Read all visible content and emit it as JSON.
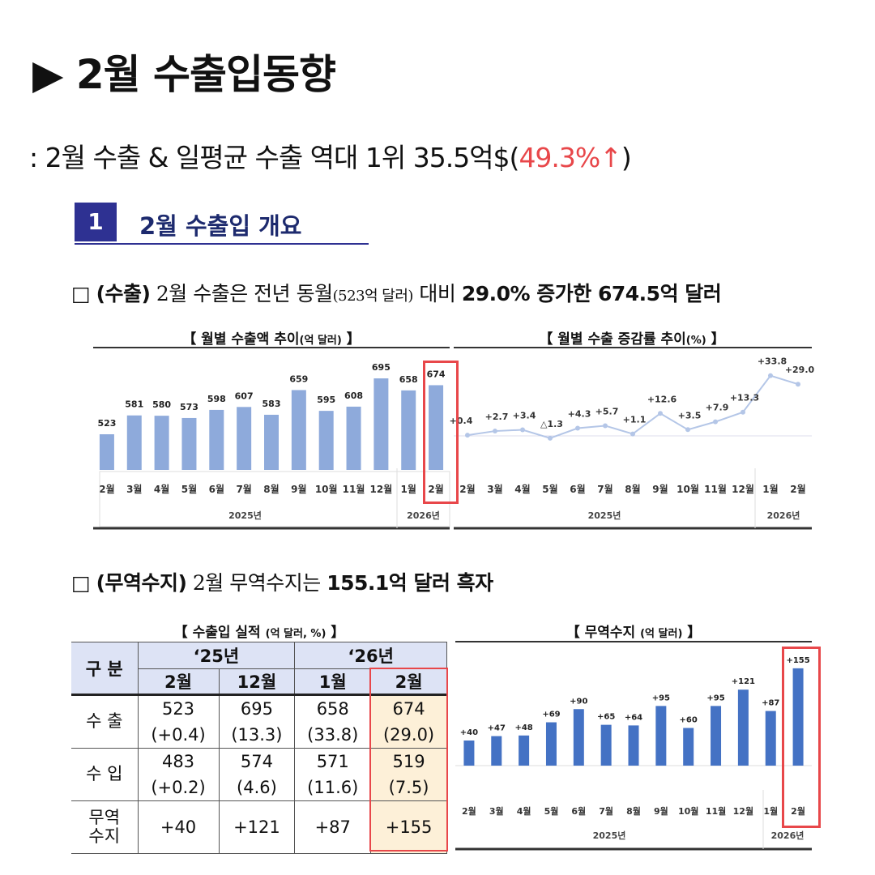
{
  "title": "▶ 2월 수출입동향",
  "subtitle": {
    "prefix": ": 2월 수출 & 일평균 수출 역대 1위 35.5억$(",
    "highlight": "49.3%↑",
    "suffix": ")"
  },
  "section": {
    "number": "1",
    "title": "2월 수출입 개요"
  },
  "export_line": {
    "box": "□",
    "label": "(수출)",
    "text1": " 2월 수출은 전년 동월",
    "paren": "(523억 달러)",
    "text2": " 대비 ",
    "bold": "29.0% 증가한 674.5억 달러"
  },
  "balance_line": {
    "box": "□",
    "label": "(무역수지)",
    "text1": " 2월 무역수지는 ",
    "bold": "155.1억 달러 흑자"
  },
  "chart_data": [
    {
      "type": "bar",
      "title": "【 월별 수출액 추이",
      "unit": "(억 달러)",
      "title_end": " 】",
      "categories": [
        "2월",
        "3월",
        "4월",
        "5월",
        "6월",
        "7월",
        "8월",
        "9월",
        "10월",
        "11월",
        "12월",
        "1월",
        "2월"
      ],
      "values": [
        523,
        581,
        580,
        573,
        598,
        607,
        583,
        659,
        595,
        608,
        695,
        658,
        674
      ],
      "labels": [
        "523",
        "581",
        "580",
        "573",
        "598",
        "607",
        "583",
        "659",
        "595",
        "608",
        "695",
        "658",
        "674"
      ],
      "groups": [
        "2025년",
        "2026년"
      ],
      "ylim": [
        410,
        720
      ],
      "color": "#8eaadb"
    },
    {
      "type": "line",
      "title": "【 월별 수출 증감률 추이",
      "unit": "(%)",
      "title_end": " 】",
      "categories": [
        "2월",
        "3월",
        "4월",
        "5월",
        "6월",
        "7월",
        "8월",
        "9월",
        "10월",
        "11월",
        "12월",
        "1월",
        "2월"
      ],
      "values": [
        0.4,
        2.7,
        3.4,
        -1.3,
        4.3,
        5.7,
        1.1,
        12.6,
        3.5,
        7.9,
        13.3,
        33.8,
        29.0
      ],
      "labels": [
        "+0.4",
        "+2.7",
        "+3.4",
        "△1.3",
        "+4.3",
        "+5.7",
        "+1.1",
        "+12.6",
        "+3.5",
        "+7.9",
        "+13.3",
        "+33.8",
        "+29.0"
      ],
      "groups": [
        "2025년",
        "2026년"
      ],
      "color": "#b4c6e7"
    },
    {
      "type": "bar",
      "title": "【 무역수지",
      "unit": "(억 달러)",
      "title_end": " 】",
      "categories": [
        "2월",
        "3월",
        "4월",
        "5월",
        "6월",
        "7월",
        "8월",
        "9월",
        "10월",
        "11월",
        "12월",
        "1월",
        "2월"
      ],
      "values": [
        40,
        47,
        48,
        69,
        90,
        65,
        64,
        95,
        60,
        95,
        121,
        87,
        155
      ],
      "labels": [
        "+40",
        "+47",
        "+48",
        "+69",
        "+90",
        "+65",
        "+64",
        "+95",
        "+60",
        "+95",
        "+121",
        "+87",
        "+155"
      ],
      "groups": [
        "2025년",
        "2026년"
      ],
      "ylim": [
        0,
        160
      ],
      "color": "#4472c4"
    }
  ],
  "table": {
    "title": "【 수출입 실적",
    "unit": "(억 달러, %)",
    "title_end": " 】",
    "corner": "구 분",
    "years": [
      "‘25년",
      "‘26년"
    ],
    "months": [
      "2월",
      "12월",
      "1월",
      "2월"
    ],
    "rows": [
      {
        "label": "수 출",
        "values": [
          "523",
          "695",
          "658",
          "674"
        ],
        "changes": [
          "(+0.4)",
          "(13.3)",
          "(33.8)",
          "(29.0)"
        ]
      },
      {
        "label": "수 입",
        "values": [
          "483",
          "574",
          "571",
          "519"
        ],
        "changes": [
          "(+0.2)",
          "(4.6)",
          "(11.6)",
          "(7.5)"
        ]
      },
      {
        "label": "무역\n수지",
        "values": [
          "+40",
          "+121",
          "+87",
          "+155"
        ]
      }
    ]
  }
}
